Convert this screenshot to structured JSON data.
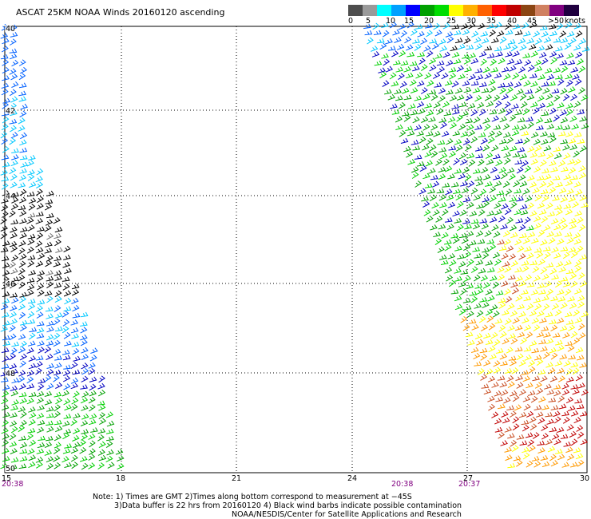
{
  "title": "ASCAT 25KM NOAA Winds 20160120 ascending",
  "colorbar": {
    "unit_label": "knots",
    "colors": [
      "#4d4d4d",
      "#9a9a9a",
      "#00ffff",
      "#00a0ff",
      "#0000ff",
      "#00a000",
      "#00dd00",
      "#ffff00",
      "#ffb000",
      "#ff6000",
      "#ff0000",
      "#c00000",
      "#8b4513",
      "#d08060",
      "#800080",
      "#200040"
    ],
    "labels": [
      "0",
      "5",
      "10",
      "15",
      "20",
      "25",
      "30",
      "35",
      "40",
      "45",
      ">50"
    ]
  },
  "map": {
    "lat_labels": [
      "40",
      "42",
      "44",
      "46",
      "48",
      "50"
    ],
    "lon_labels": [
      "15",
      "18",
      "21",
      "24",
      "27",
      "30"
    ],
    "time_labels": [
      "20:38",
      "20:38",
      "20:37"
    ]
  },
  "wind_colors": {
    "contaminated": "#000000",
    "calm": "#707070",
    "light": "#00c8ff",
    "moderate": "#0060ff",
    "fresh": "#0000c0",
    "strong": "#00a000",
    "strong2": "#00d000",
    "gale": "#ffff00",
    "gale2": "#ff9900",
    "storm": "#c84c20",
    "storm2": "#c00000"
  },
  "notes": [
    "Note: 1) Times are GMT 2)Times along bottom correspond to measurement at −45S",
    "3)Data buffer is 22 hrs from 20160120 4) Black wind barbs indicate possible contamination",
    "NOAA/NESDIS/Center for Satellite Applications and Research"
  ]
}
